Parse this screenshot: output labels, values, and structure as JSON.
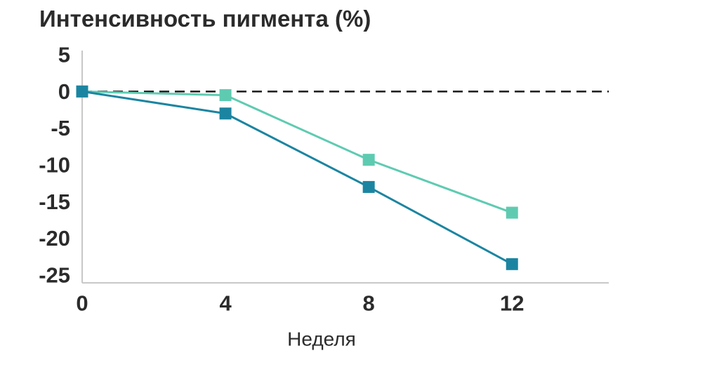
{
  "chart_data": {
    "type": "line",
    "title": "Интенсивность пигмента (%)",
    "xlabel": "Неделя",
    "ylabel": "",
    "x": [
      0,
      4,
      8,
      12
    ],
    "x_ticks": [
      "0",
      "4",
      "8",
      "12"
    ],
    "y_ticks": [
      "5",
      "0",
      "-5",
      "-10",
      "-15",
      "-20",
      "-25"
    ],
    "xlim": [
      0,
      14.7
    ],
    "ylim": [
      -25,
      5
    ],
    "reference_line": 0,
    "grid": false,
    "series": [
      {
        "color": "#1b85a1",
        "values": [
          0,
          -3,
          -13,
          -23.5
        ]
      },
      {
        "color": "#5ecbb1",
        "values": [
          0,
          -0.5,
          -9.3,
          -16.5
        ]
      }
    ]
  }
}
